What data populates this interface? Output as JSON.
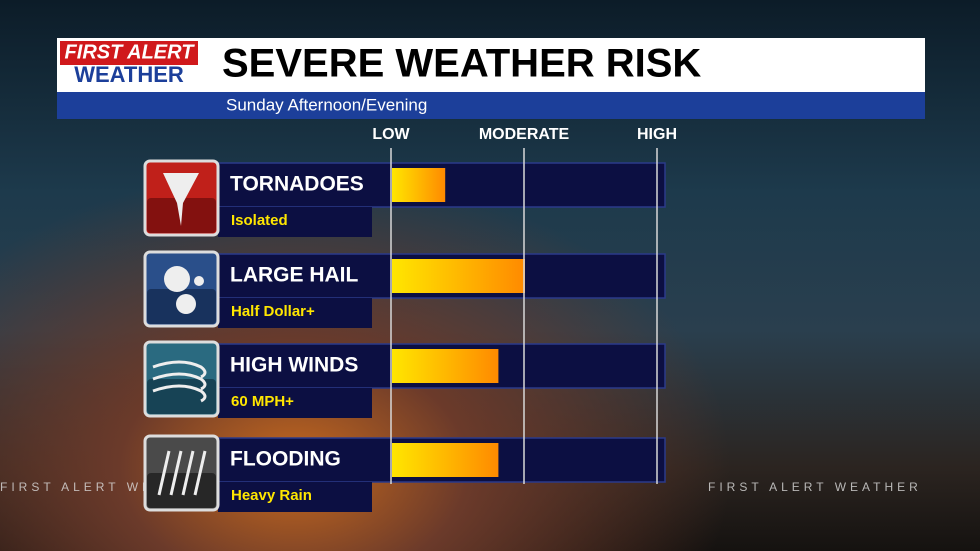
{
  "logo": {
    "line1": "FIRST ALERT",
    "line2": "WEATHER"
  },
  "watermark": "FIRST ALERT WEATHER",
  "chart_data": {
    "type": "bar",
    "orientation": "horizontal",
    "title": "SEVERE WEATHER RISK",
    "subtitle": "Sunday Afternoon/Evening",
    "categories": [
      "TORNADOES",
      "LARGE HAIL",
      "HIGH WINDS",
      "FLOODING"
    ],
    "descriptions": [
      "Isolated",
      "Half Dollar+",
      "60 MPH+",
      "Heavy Rain"
    ],
    "values": [
      0.4,
      1.0,
      0.8,
      0.8
    ],
    "colors": [
      "#ffe600",
      "#ff8a00"
    ],
    "xlim": [
      0,
      2
    ],
    "xticks": [
      {
        "value": 0,
        "label": "LOW"
      },
      {
        "value": 1,
        "label": "MODERATE"
      },
      {
        "value": 2,
        "label": "HIGH"
      }
    ],
    "grid": true
  }
}
